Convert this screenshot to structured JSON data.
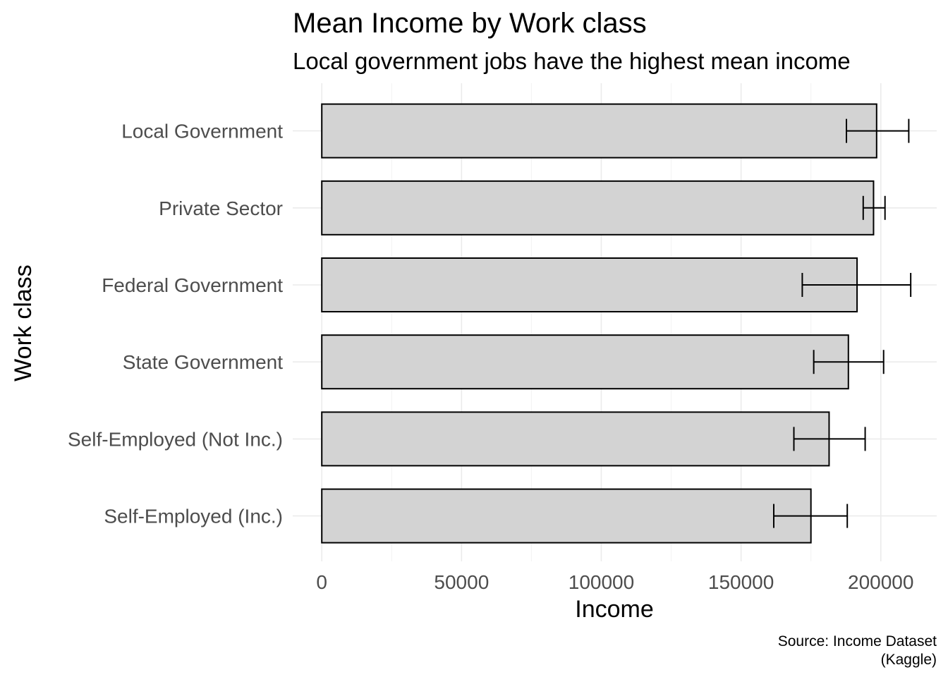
{
  "chart_data": {
    "type": "bar",
    "orientation": "horizontal",
    "title": "Mean Income by Work class",
    "subtitle": "Local government jobs have the highest mean income",
    "xlabel": "Income",
    "ylabel": "Work class",
    "caption_lines": [
      "Source: Income Dataset",
      "(Kaggle)"
    ],
    "categories": [
      "Local Government",
      "Private Sector",
      "Federal Government",
      "State Government",
      "Self-Employed (Not Inc.)",
      "Self-Employed (Inc.)"
    ],
    "values": [
      198500,
      197400,
      191500,
      188400,
      181500,
      175000
    ],
    "error_low": [
      187700,
      193700,
      171900,
      176000,
      168900,
      161700
    ],
    "error_high": [
      210000,
      201500,
      210700,
      201000,
      194400,
      188000
    ],
    "xlim": [
      -10400,
      220000
    ],
    "x_ticks": [
      0,
      50000,
      100000,
      150000,
      200000
    ],
    "x_tick_labels": [
      "0",
      "50000",
      "100000",
      "150000",
      "200000"
    ],
    "grid": true,
    "legend": "none",
    "colors": {
      "bar_fill": "#d3d3d3",
      "bar_stroke": "#000000",
      "errorbar": "#000000"
    }
  }
}
